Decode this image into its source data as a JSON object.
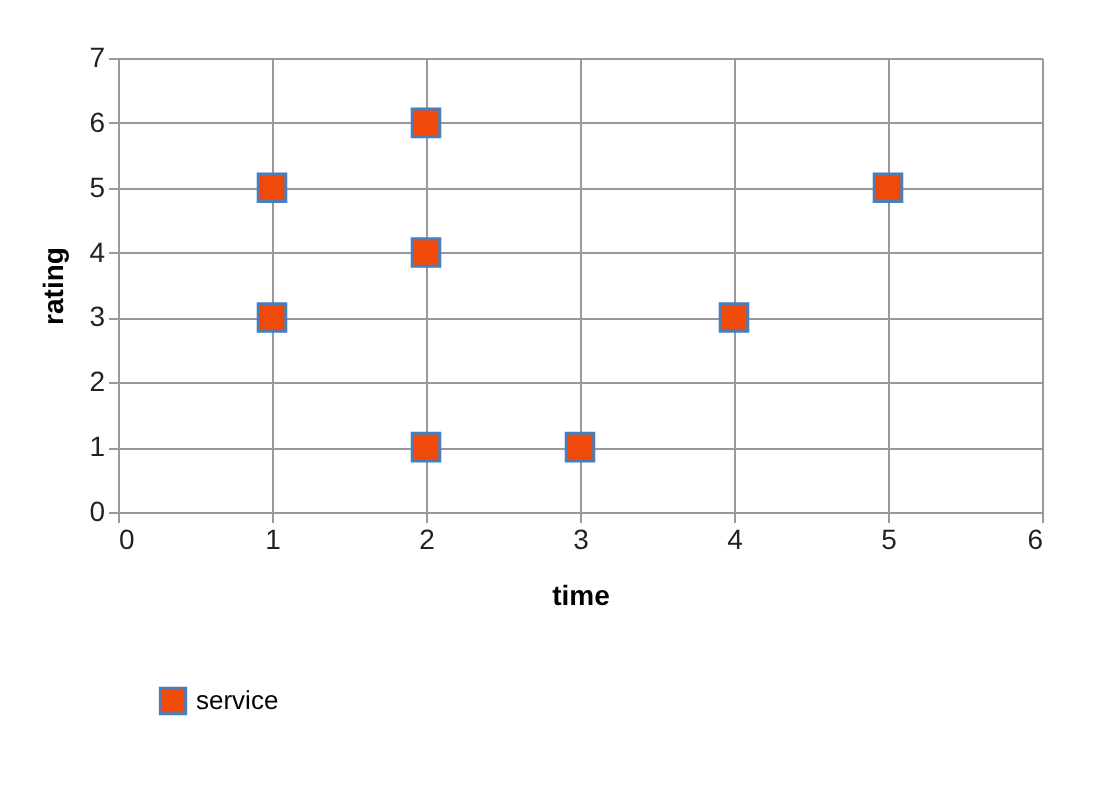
{
  "chart_data": {
    "type": "scatter",
    "xlabel": "time",
    "ylabel": "rating",
    "x": [
      1,
      1,
      2,
      2,
      2,
      3,
      4,
      5
    ],
    "series": [
      {
        "name": "service",
        "color": "#f04a0a",
        "values": [
          5,
          3,
          6,
          4,
          1,
          1,
          3,
          5
        ]
      }
    ],
    "xlim": [
      0,
      6
    ],
    "xticks": [
      0,
      1,
      2,
      3,
      4,
      5,
      6
    ],
    "ylim": [
      0,
      7
    ],
    "yticks": [
      0,
      1,
      2,
      3,
      4,
      5,
      6,
      7
    ],
    "grid": true,
    "legend": "bottom",
    "marker": "square"
  }
}
